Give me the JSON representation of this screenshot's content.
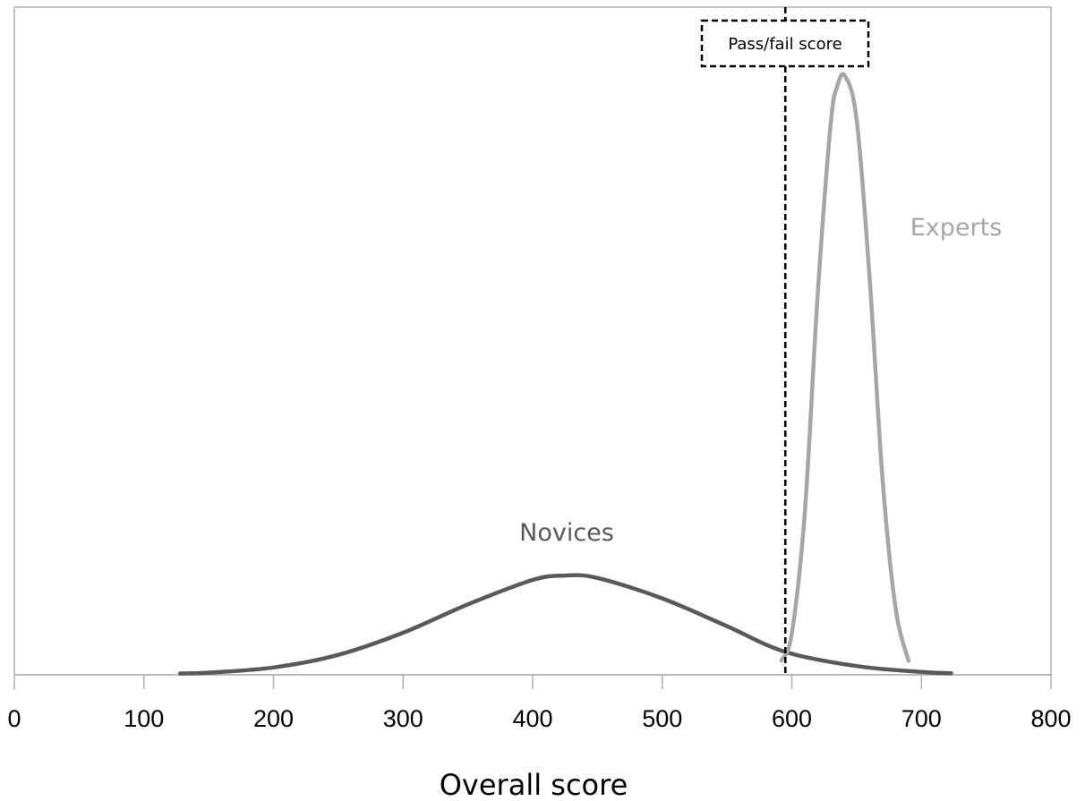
{
  "chart_data": {
    "type": "line",
    "title": "",
    "xlabel": "Overall score",
    "ylabel": "",
    "xlim": [
      0,
      800
    ],
    "x_ticks": [
      "0",
      "100",
      "200",
      "300",
      "400",
      "500",
      "600",
      "700",
      "800"
    ],
    "grid": false,
    "legend": "none",
    "series": [
      {
        "name": "Novices",
        "color": "#595959",
        "x": [
          128,
          150,
          200,
          250,
          300,
          350,
          400,
          425,
          450,
          500,
          550,
          595,
          650,
          700,
          723
        ],
        "y": [
          0.011,
          0.018,
          0.062,
          0.169,
          0.356,
          0.596,
          0.803,
          0.84,
          0.82,
          0.647,
          0.411,
          0.194,
          0.074,
          0.024,
          0.013
        ]
      },
      {
        "name": "Experts",
        "color": "#a6a6a6",
        "x": [
          592,
          600,
          610,
          620,
          630,
          635,
          641,
          650,
          660,
          670,
          680,
          690
        ],
        "y": [
          0.12,
          0.35,
          1.37,
          3.23,
          4.66,
          4.98,
          5.07,
          4.7,
          3.37,
          1.66,
          0.57,
          0.12
        ]
      }
    ],
    "annotations": [
      {
        "label": "Pass/fail score",
        "x": 595,
        "style": "dashed vertical line"
      }
    ]
  }
}
